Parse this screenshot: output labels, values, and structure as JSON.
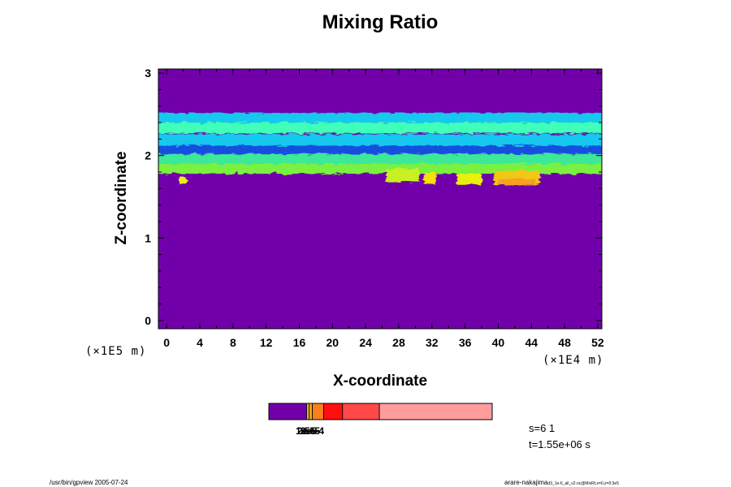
{
  "chart_data": {
    "type": "heatmap",
    "title": "Mixing Ratio",
    "xlabel": "X-coordinate",
    "ylabel": "Z-coordinate",
    "x_unit_label": "(×1E4 m)",
    "y_unit_label": "(×1E5 m)",
    "xlim": [
      -1,
      52.5
    ],
    "ylim": [
      -0.1,
      3.05
    ],
    "x_ticks": [
      "0",
      "4",
      "8",
      "12",
      "16",
      "20",
      "24",
      "28",
      "32",
      "36",
      "40",
      "44",
      "48",
      "52"
    ],
    "y_ticks": [
      "0",
      "1",
      "2",
      "3"
    ],
    "background_color": "#7100aa",
    "bands": [
      {
        "z_bottom": 2.4,
        "z_top": 2.52,
        "color": "#18c8ee"
      },
      {
        "z_bottom": 2.27,
        "z_top": 2.4,
        "color": "#40ffb8"
      },
      {
        "z_bottom": 2.12,
        "z_top": 2.26,
        "color": "#18c8ee"
      },
      {
        "z_bottom": 2.02,
        "z_top": 2.12,
        "color": "#1850e0"
      },
      {
        "z_bottom": 1.84,
        "z_top": 2.02,
        "color": "#3ee898"
      },
      {
        "z_bottom": 1.78,
        "z_top": 1.9,
        "color": "#7af040"
      }
    ],
    "patches": [
      {
        "x": [
          26.5,
          30.5
        ],
        "z": [
          1.68,
          1.84
        ],
        "color": "#c8f020"
      },
      {
        "x": [
          31.0,
          32.5
        ],
        "z": [
          1.66,
          1.8
        ],
        "color": "#f8e010"
      },
      {
        "x": [
          35.0,
          38.0
        ],
        "z": [
          1.65,
          1.78
        ],
        "color": "#e8f010"
      },
      {
        "x": [
          39.5,
          45.0
        ],
        "z": [
          1.64,
          1.82
        ],
        "color": "#f0c818"
      },
      {
        "x": [
          40.0,
          44.5
        ],
        "z": [
          1.64,
          1.72
        ],
        "color": "#f8a020"
      },
      {
        "x": [
          1.5,
          2.5
        ],
        "z": [
          1.66,
          1.74
        ],
        "color": "#e8f010"
      }
    ],
    "colorbar": {
      "segments": [
        {
          "color": "#7100aa",
          "width": 0.17
        },
        {
          "color": "#f8d018",
          "width": 0.01
        },
        {
          "color": "#f8a020",
          "width": 0.015
        },
        {
          "color": "#f88020",
          "width": 0.05
        },
        {
          "color": "#ff1010",
          "width": 0.085
        },
        {
          "color": "#ff4848",
          "width": 0.165
        },
        {
          "color": "#ff9c9c",
          "width": 0.505
        }
      ],
      "labels": [
        "1e-5",
        "2e-5",
        "3e-5",
        "5e-4"
      ]
    },
    "annotation_step": "s=6 1",
    "annotation_time": "t=1.55e+06 s"
  },
  "footer": {
    "left": "/usr/bin/gpview 2005-07-24",
    "right_main": "arare-nakajima",
    "right_sub": "d3_1e-6_all_v2.nc@MixRt,x=0,z=0:3e5"
  }
}
